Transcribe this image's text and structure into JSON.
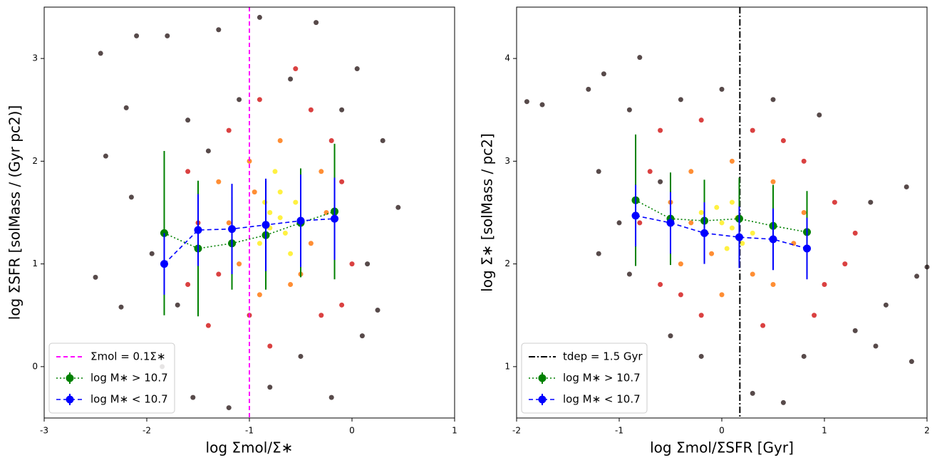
{
  "chart_data": [
    {
      "type": "scatter",
      "xlabel": "log Σmol/Σ∗",
      "ylabel": "log ΣSFR [solMass / (Gyr pc2)]",
      "xlim": [
        -3,
        1
      ],
      "ylim": [
        -0.5,
        3.5
      ],
      "xticks": [
        -3,
        -2,
        -1,
        0,
        1
      ],
      "yticks": [
        0,
        1,
        2,
        3
      ],
      "legend": "lower left",
      "vline": {
        "x": -1,
        "color": "#ff00ff",
        "style": "dashed",
        "label": "Σmol = 0.1Σ∗"
      },
      "points": [
        {
          "color": "#3a2a2a",
          "x": [
            -2.45,
            -2.1,
            -1.8,
            -2.2,
            -2.4,
            -2.15,
            -2.5,
            -2.25,
            -1.95,
            -1.6,
            -1.3,
            -0.9,
            -0.35,
            0.05,
            0.3,
            0.45,
            0.25,
            0.1,
            -0.2,
            -0.8,
            -1.2,
            -1.55,
            -1.85,
            -0.6,
            -1.1,
            0.15,
            -1.7,
            -0.1,
            -1.4,
            -0.5
          ],
          "y": [
            3.05,
            3.22,
            3.22,
            2.52,
            2.05,
            1.65,
            0.87,
            0.58,
            1.1,
            2.4,
            3.28,
            3.4,
            3.35,
            2.9,
            2.2,
            1.55,
            0.55,
            0.3,
            -0.3,
            -0.2,
            -0.4,
            -0.3,
            0.0,
            2.8,
            2.6,
            1.0,
            0.6,
            2.5,
            2.1,
            0.1
          ]
        },
        {
          "color": "#d42020",
          "x": [
            -1.6,
            -1.4,
            -1.2,
            -0.9,
            -0.4,
            -0.1,
            0.0,
            -0.3,
            -0.8,
            -1.3,
            -1.5,
            -0.2,
            -1.0,
            -0.55,
            -1.6,
            -0.1
          ],
          "y": [
            1.9,
            0.4,
            2.3,
            2.6,
            2.5,
            1.8,
            1.0,
            0.5,
            0.2,
            0.9,
            1.4,
            2.2,
            0.5,
            2.9,
            0.8,
            0.6
          ]
        },
        {
          "color": "#ff7a10",
          "x": [
            -1.3,
            -1.1,
            -0.9,
            -0.5,
            -0.3,
            -0.4,
            -1.0,
            -0.7,
            -1.2,
            -0.6,
            -0.25,
            -0.95
          ],
          "y": [
            1.8,
            1.0,
            0.7,
            0.9,
            1.9,
            1.2,
            2.0,
            2.2,
            1.4,
            0.8,
            1.5,
            1.7
          ]
        },
        {
          "color": "#ffee20",
          "x": [
            -0.8,
            -0.7,
            -0.65,
            -0.9,
            -0.55,
            -0.75,
            -0.85,
            -0.6,
            -0.7,
            -0.8
          ],
          "y": [
            1.5,
            1.7,
            1.3,
            1.2,
            1.6,
            1.9,
            1.6,
            1.1,
            1.45,
            1.35
          ]
        }
      ],
      "series": [
        {
          "name": "log M∗ > 10.7",
          "color": "#008000",
          "linestyle": "dotted",
          "x": [
            -1.83,
            -1.5,
            -1.17,
            -0.84,
            -0.5,
            -0.17
          ],
          "values": [
            1.3,
            1.15,
            1.2,
            1.28,
            1.4,
            1.51
          ],
          "errors": [
            0.8,
            0.66,
            0.45,
            0.53,
            0.53,
            0.66
          ]
        },
        {
          "name": "log M∗ < 10.7",
          "color": "#0000ff",
          "linestyle": "dashed",
          "x": [
            -1.83,
            -1.5,
            -1.17,
            -0.84,
            -0.5,
            -0.17
          ],
          "values": [
            1.0,
            1.33,
            1.34,
            1.38,
            1.42,
            1.44
          ],
          "errors": [
            0.3,
            0.35,
            0.44,
            0.45,
            0.45,
            0.4
          ]
        }
      ]
    },
    {
      "type": "scatter",
      "xlabel": "log Σmol/ΣSFR [Gyr]",
      "ylabel": "log Σ∗ [solMass / pc2]",
      "xlim": [
        -2,
        2
      ],
      "ylim": [
        0.5,
        4.5
      ],
      "xticks": [
        -2,
        -1,
        0,
        1,
        2
      ],
      "yticks": [
        1,
        2,
        3,
        4
      ],
      "legend": "lower left",
      "vline": {
        "x": 0.176,
        "color": "#000000",
        "style": "dashdot",
        "label": "tdep = 1.5 Gyr"
      },
      "points": [
        {
          "color": "#3a2a2a",
          "x": [
            -1.9,
            -1.75,
            -1.3,
            -0.8,
            -1.15,
            -0.9,
            -1.2,
            -1.0,
            -1.2,
            -0.9,
            -0.5,
            -0.2,
            0.3,
            0.6,
            1.3,
            1.5,
            1.85,
            1.9,
            2.0,
            1.8,
            1.45,
            0.95,
            0.5,
            0.0,
            -0.4,
            0.8,
            -0.6,
            1.6
          ],
          "y": [
            3.58,
            3.55,
            3.7,
            4.01,
            3.85,
            3.5,
            2.9,
            2.4,
            2.1,
            1.9,
            1.3,
            1.1,
            0.74,
            0.65,
            1.35,
            1.2,
            1.05,
            1.88,
            1.97,
            2.75,
            2.6,
            3.45,
            3.6,
            3.7,
            3.6,
            1.1,
            2.8,
            1.6
          ]
        },
        {
          "color": "#d42020",
          "x": [
            -0.6,
            -0.2,
            0.3,
            0.8,
            1.1,
            1.2,
            0.9,
            0.4,
            -0.2,
            -0.6,
            -0.8,
            -0.7,
            1.0,
            0.6,
            -0.4,
            1.3
          ],
          "y": [
            3.3,
            3.4,
            3.3,
            3.0,
            2.6,
            2.0,
            1.5,
            1.4,
            1.5,
            1.8,
            2.4,
            2.9,
            1.8,
            3.2,
            1.7,
            2.3
          ]
        },
        {
          "color": "#ff7a10",
          "x": [
            -0.5,
            -0.3,
            0.1,
            0.5,
            0.7,
            0.5,
            0.0,
            -0.4,
            0.8,
            -0.1,
            0.3,
            -0.3
          ],
          "y": [
            2.6,
            2.9,
            3.0,
            2.8,
            2.2,
            1.8,
            1.7,
            2.0,
            2.5,
            2.1,
            1.9,
            2.4
          ]
        },
        {
          "color": "#ffee20",
          "x": [
            0.0,
            0.1,
            -0.15,
            0.2,
            -0.05,
            0.15,
            0.3,
            -0.2,
            0.05,
            0.1
          ],
          "y": [
            2.4,
            2.6,
            2.3,
            2.2,
            2.55,
            2.45,
            2.3,
            2.5,
            2.15,
            2.35
          ]
        }
      ],
      "series": [
        {
          "name": "log M∗ > 10.7",
          "color": "#008000",
          "linestyle": "dotted",
          "x": [
            -0.84,
            -0.5,
            -0.17,
            0.17,
            0.5,
            0.83
          ],
          "values": [
            2.62,
            2.44,
            2.42,
            2.44,
            2.37,
            2.31
          ],
          "errors": [
            0.64,
            0.45,
            0.4,
            0.4,
            0.4,
            0.4
          ]
        },
        {
          "name": "log M∗ < 10.7",
          "color": "#0000ff",
          "linestyle": "dashed",
          "x": [
            -0.84,
            -0.5,
            -0.17,
            0.17,
            0.5,
            0.83
          ],
          "values": [
            2.47,
            2.4,
            2.3,
            2.26,
            2.24,
            2.15
          ],
          "errors": [
            0.3,
            0.3,
            0.3,
            0.3,
            0.3,
            0.3
          ]
        }
      ]
    }
  ]
}
